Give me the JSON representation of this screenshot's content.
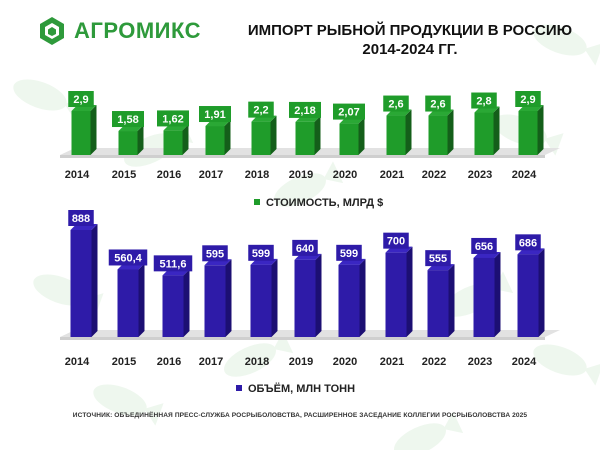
{
  "header": {
    "logo_text": "АГРОМИКС",
    "title_line1": "ИМПОРТ РЫБНОЙ ПРОДУКЦИИ В РОССИЮ",
    "title_line2": "2014-2024 ГГ."
  },
  "source": "ИСТОЧНИК: ОБЪЕДИНЁННАЯ ПРЕСС-СЛУЖБА РОСРЫБОЛОВСТВА, РАСШИРЕННОЕ ЗАСЕДАНИЕ КОЛЛЕГИИ РОСРЫБОЛОВСТВА 2025",
  "colors": {
    "green": "#1f9c2a",
    "purple": "#2e1ba8",
    "logo": "#2e9a3b"
  },
  "chart_data": [
    {
      "type": "bar",
      "categories": [
        "2014",
        "2015",
        "2016",
        "2017",
        "2018",
        "2019",
        "2020",
        "2021",
        "2022",
        "2023",
        "2024"
      ],
      "series": [
        {
          "name": "СТОИМОСТЬ, МЛРД $",
          "values": [
            2.9,
            1.58,
            1.62,
            1.91,
            2.2,
            2.18,
            2.07,
            2.6,
            2.6,
            2.8,
            2.9
          ],
          "labels": [
            "2,9",
            "1,58",
            "1,62",
            "1,91",
            "2,2",
            "2,18",
            "2,07",
            "2,6",
            "2,6",
            "2,8",
            "2,9"
          ]
        }
      ],
      "legend": "СТОИМОСТЬ, МЛРД $",
      "legend_position": "bottom-center",
      "ylim": [
        0,
        2.9
      ],
      "color": "#1f9c2a"
    },
    {
      "type": "bar",
      "categories": [
        "2014",
        "2015",
        "2016",
        "2017",
        "2018",
        "2019",
        "2020",
        "2021",
        "2022",
        "2023",
        "2024"
      ],
      "series": [
        {
          "name": "ОБЪЁМ, МЛН ТОНН",
          "values": [
            888,
            560.4,
            511.6,
            595,
            599,
            640,
            599,
            700,
            555,
            656,
            686
          ],
          "labels": [
            "888",
            "560,4",
            "511,6",
            "595",
            "599",
            "640",
            "599",
            "700",
            "555",
            "656",
            "686"
          ]
        }
      ],
      "legend": "ОБЪЁМ, МЛН ТОНН",
      "legend_position": "bottom-center",
      "ylim": [
        0,
        888
      ],
      "color": "#2e1ba8"
    }
  ]
}
